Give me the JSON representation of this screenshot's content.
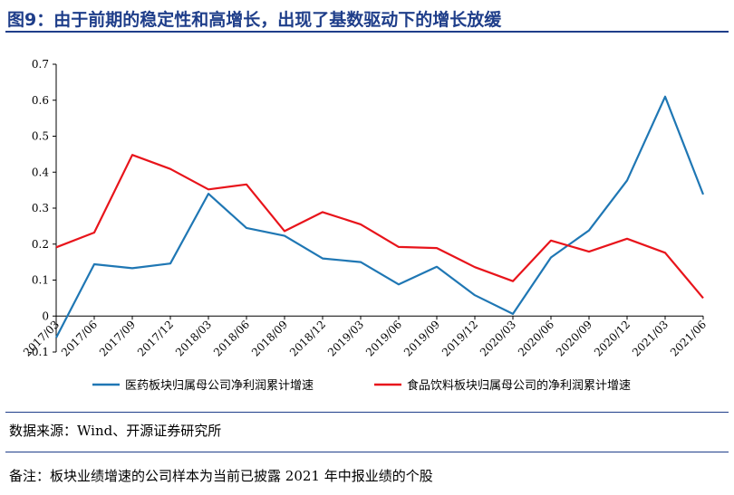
{
  "figure": {
    "title": "图9：由于前期的稳定性和高增长，出现了基数驱动下的增长放缓",
    "source": "数据来源：Wind、开源证券研究所",
    "note": "备注：板块业绩增速的公司样本为当前已披露 2021 年中报业绩的个股"
  },
  "chart_data": {
    "type": "line",
    "title": "",
    "xlabel": "",
    "ylabel": "",
    "x": [
      "2017/03",
      "2017/06",
      "2017/09",
      "2017/12",
      "2018/03",
      "2018/06",
      "2018/09",
      "2018/12",
      "2019/03",
      "2019/06",
      "2019/09",
      "2019/12",
      "2020/03",
      "2020/06",
      "2020/09",
      "2020/12",
      "2021/03",
      "2021/06"
    ],
    "yticks": [
      "0.7",
      "0.6",
      "0.5",
      "0.4",
      "0.3",
      "0.2",
      "0.1",
      "0",
      "-0.1"
    ],
    "ylim": [
      -0.1,
      0.7
    ],
    "grid": false,
    "legend": "bottom",
    "series": [
      {
        "name": "医药板块归属母公司净利润累计增速",
        "color": "#1f77b4",
        "values": [
          -0.06,
          0.144,
          0.133,
          0.146,
          0.34,
          0.245,
          0.223,
          0.16,
          0.15,
          0.088,
          0.137,
          0.058,
          0.006,
          0.163,
          0.238,
          0.377,
          0.61,
          0.338
        ]
      },
      {
        "name": "食品饮料板块归属母公司的净利润累计增速",
        "color": "#e8141b",
        "values": [
          0.191,
          0.232,
          0.448,
          0.409,
          0.352,
          0.366,
          0.236,
          0.289,
          0.255,
          0.192,
          0.189,
          0.136,
          0.097,
          0.21,
          0.179,
          0.215,
          0.176,
          0.05
        ]
      }
    ]
  }
}
